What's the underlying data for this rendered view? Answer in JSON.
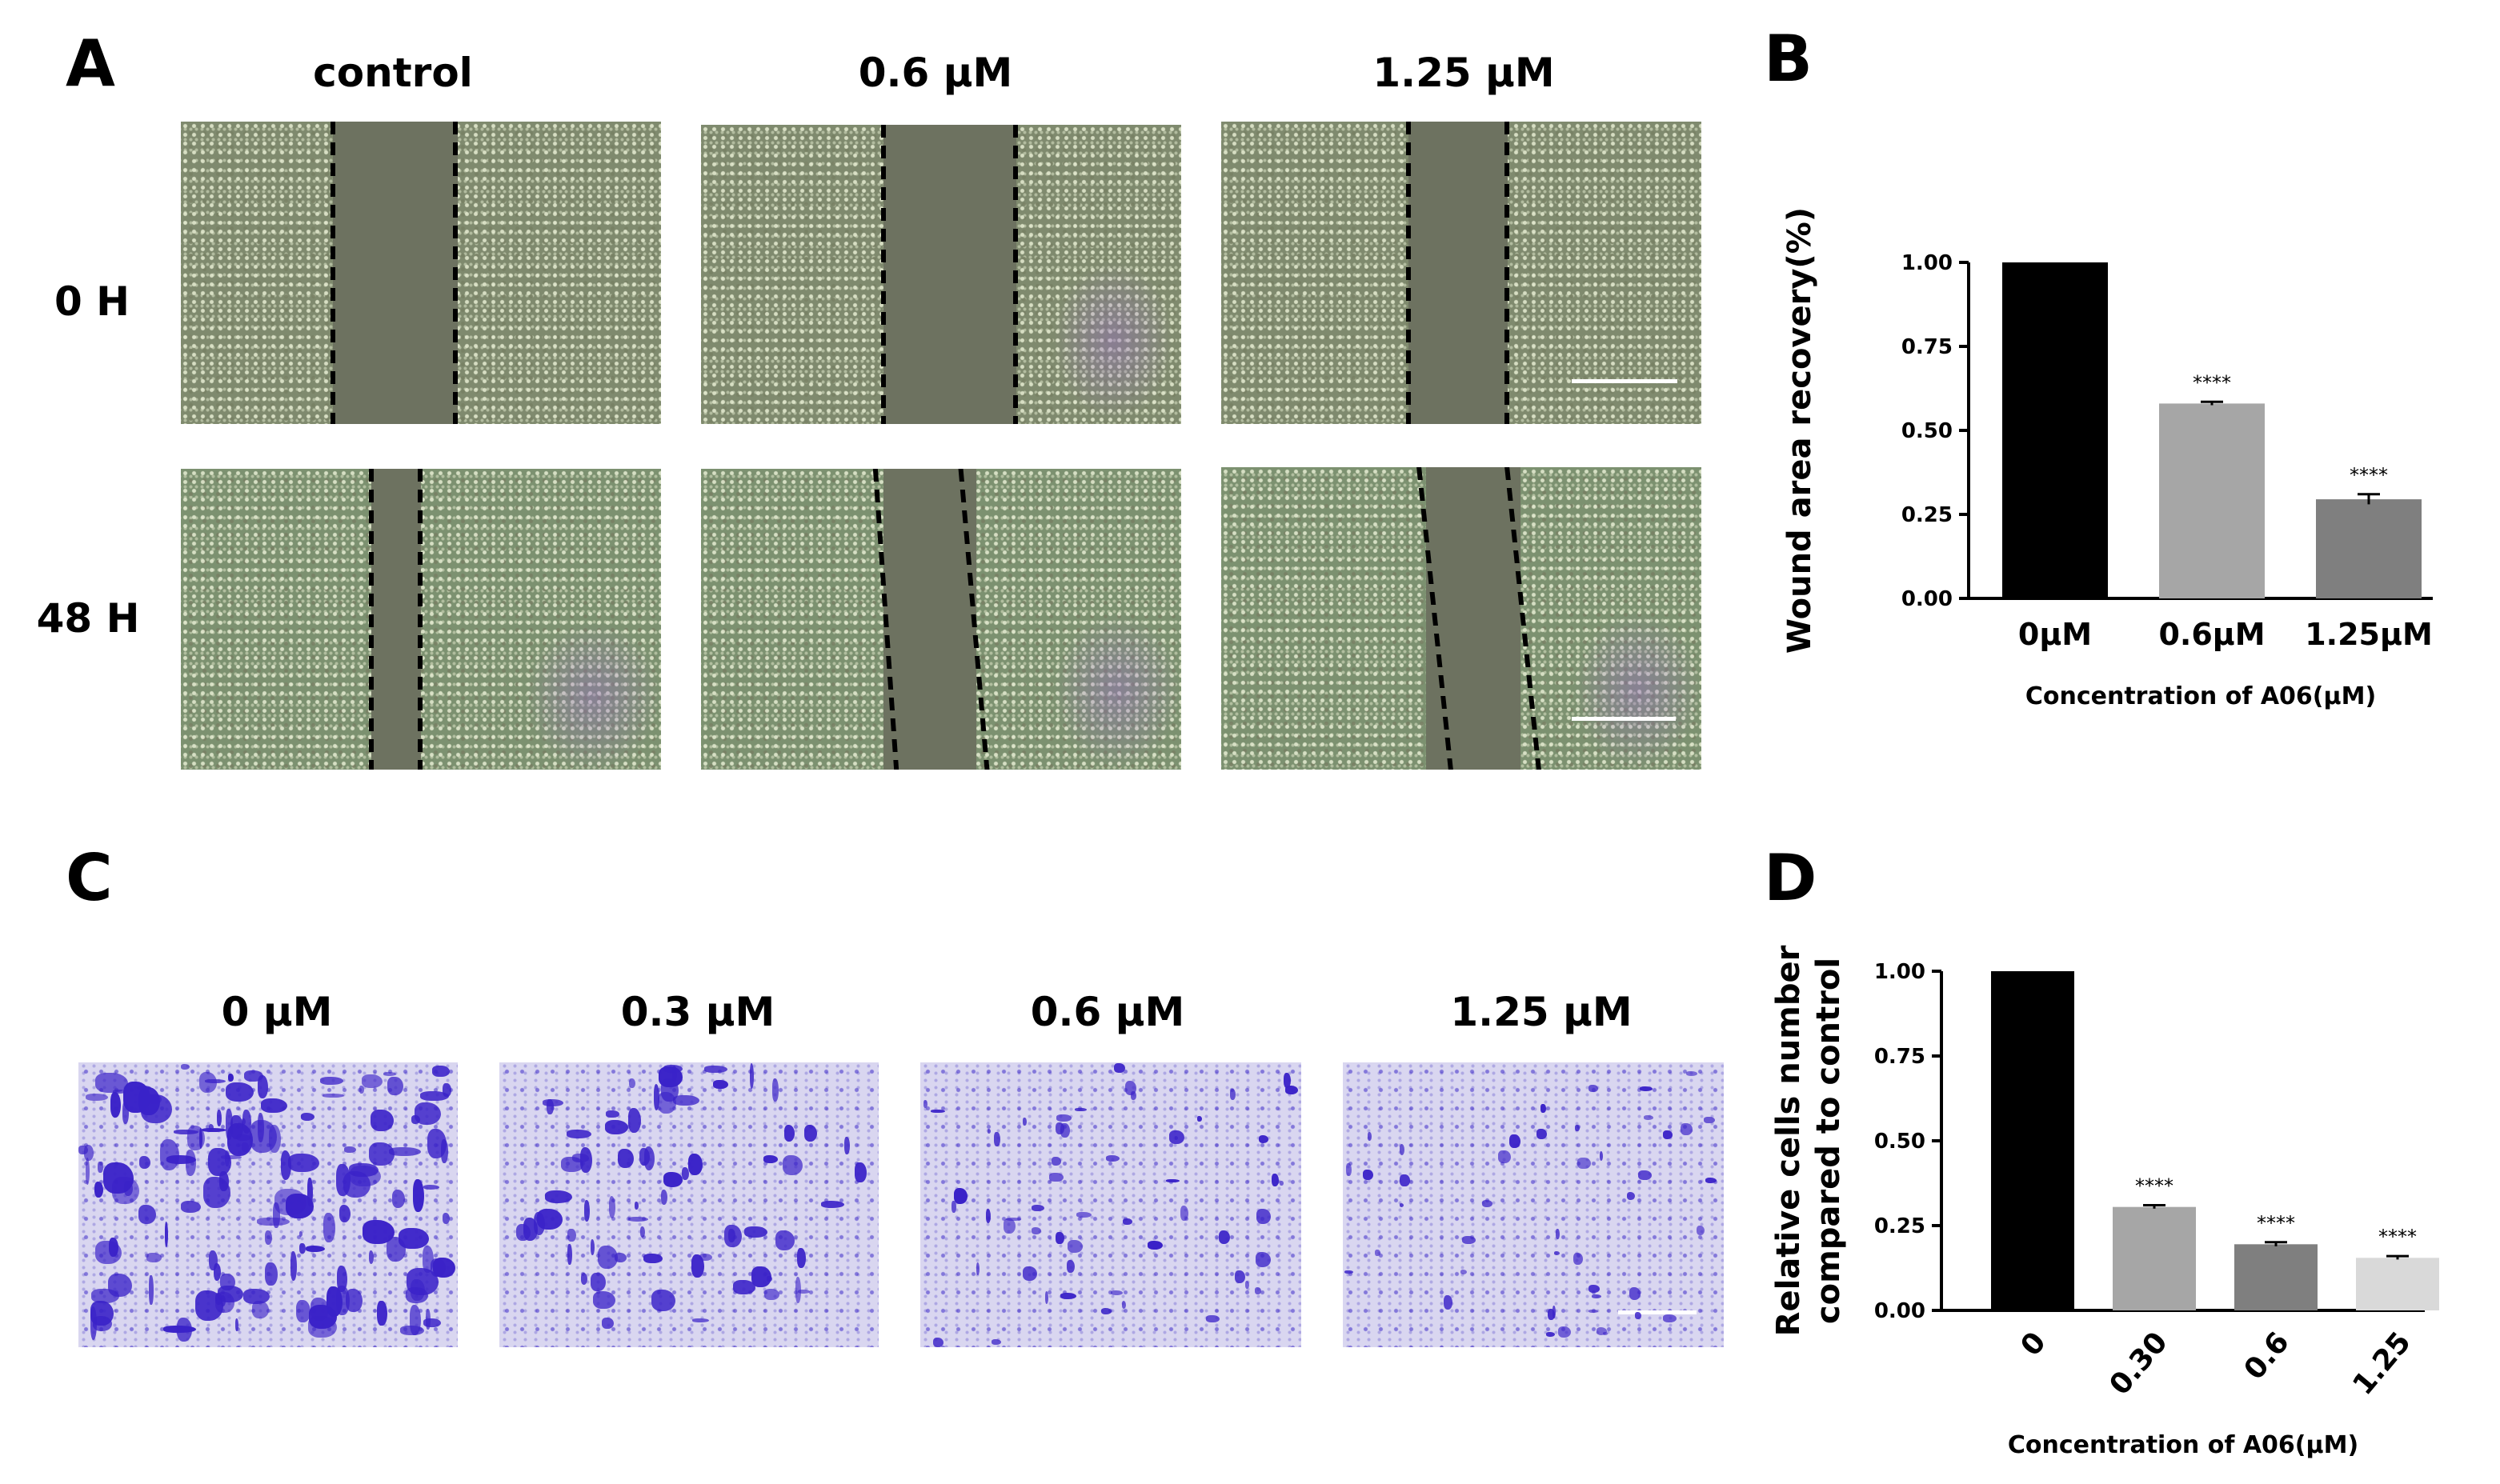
{
  "panels": {
    "A": {
      "letter": "A",
      "columns": [
        "control",
        "0.6 µM",
        "1.25 µM"
      ],
      "rows": [
        "0 H",
        "48 H"
      ]
    },
    "B": {
      "letter": "B"
    },
    "C": {
      "letter": "C",
      "columns": [
        "0 µM",
        "0.3 µM",
        "0.6 µM",
        "1.25 µM"
      ]
    },
    "D": {
      "letter": "D"
    }
  },
  "chart_data": [
    {
      "panel": "B",
      "type": "bar",
      "categories": [
        "0µM",
        "0.6µM",
        "1.25µM"
      ],
      "values": [
        1.0,
        0.58,
        0.295
      ],
      "errors": [
        0,
        0.005,
        0.015
      ],
      "significance": [
        "",
        "****",
        "****"
      ],
      "colors": [
        "#000000",
        "#a6a6a6",
        "#7f7f7f"
      ],
      "xlabel": "Concentration of A06(µM)",
      "ylabel": "Wound area recovery(%)",
      "ylim": [
        0,
        1.0
      ],
      "yticks": [
        "0.00",
        "0.25",
        "0.50",
        "0.75",
        "1.00"
      ],
      "ytick_values": [
        0,
        0.25,
        0.5,
        0.75,
        1.0
      ]
    },
    {
      "panel": "D",
      "type": "bar",
      "categories": [
        "0",
        "0.30",
        "0.6",
        "1.25"
      ],
      "values": [
        1.0,
        0.305,
        0.195,
        0.155
      ],
      "errors": [
        0,
        0.005,
        0.006,
        0.005
      ],
      "significance": [
        "",
        "****",
        "****",
        "****"
      ],
      "colors": [
        "#000000",
        "#a6a6a6",
        "#7f7f7f",
        "#d9d9d9"
      ],
      "xlabel": "Concentration of A06(µM)",
      "ylabel_lines": [
        "Relative cells number",
        "compared to control"
      ],
      "ylim": [
        0,
        1.0
      ],
      "yticks": [
        "0.00",
        "0.25",
        "0.50",
        "0.75",
        "1.00"
      ],
      "ytick_values": [
        0,
        0.25,
        0.5,
        0.75,
        1.0
      ],
      "xtick_rotation": -50
    }
  ]
}
